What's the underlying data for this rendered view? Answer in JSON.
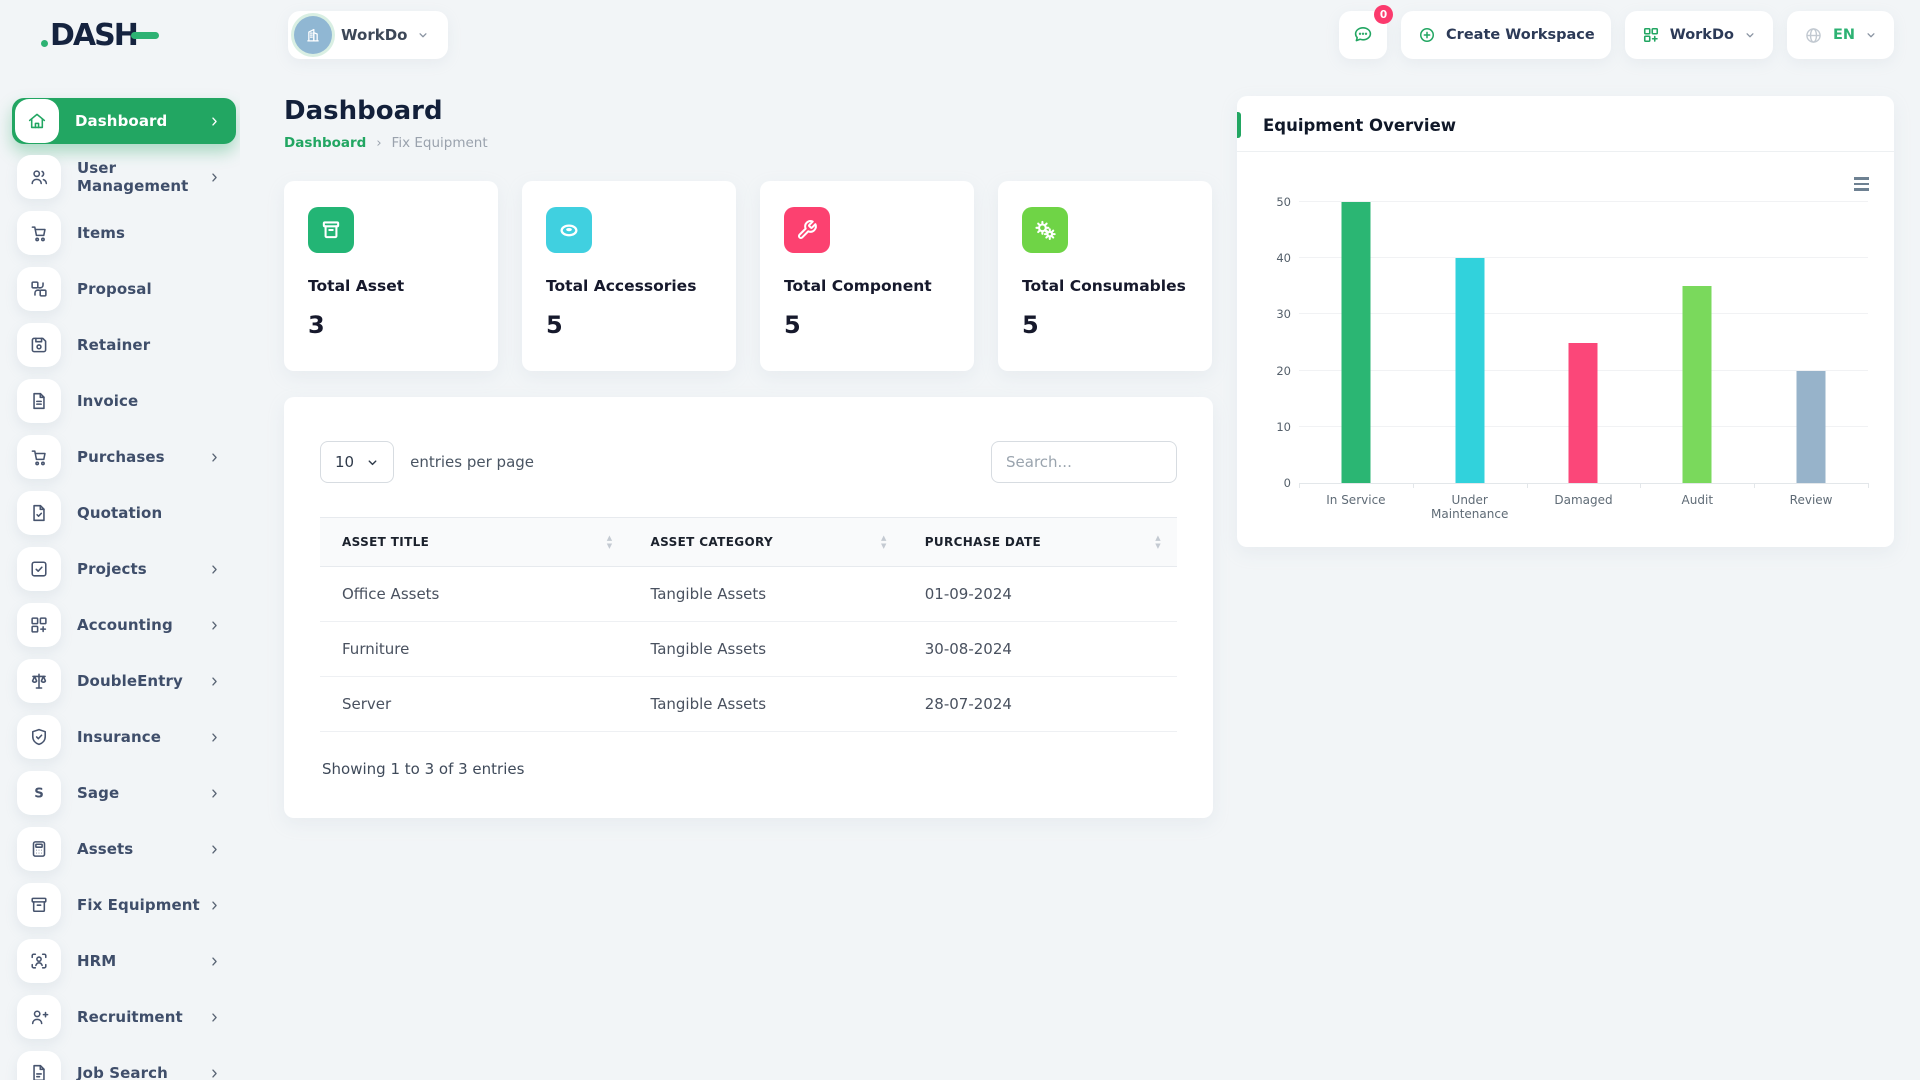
{
  "brand": {
    "name": "DASH"
  },
  "header": {
    "workspace_selector": {
      "label": "WorkDo"
    },
    "messages": {
      "count": "0"
    },
    "create_workspace": {
      "label": "Create Workspace"
    },
    "app_switcher": {
      "label": "WorkDo"
    },
    "language": {
      "label": "EN"
    }
  },
  "sidebar": {
    "items": [
      {
        "label": "Dashboard",
        "icon": "home",
        "active": true,
        "chevron": true
      },
      {
        "label": "User Management",
        "icon": "users",
        "active": false,
        "chevron": true
      },
      {
        "label": "Items",
        "icon": "cart",
        "active": false,
        "chevron": false
      },
      {
        "label": "Proposal",
        "icon": "proposal",
        "active": false,
        "chevron": false
      },
      {
        "label": "Retainer",
        "icon": "floppy",
        "active": false,
        "chevron": false
      },
      {
        "label": "Invoice",
        "icon": "file",
        "active": false,
        "chevron": false
      },
      {
        "label": "Purchases",
        "icon": "cart",
        "active": false,
        "chevron": true
      },
      {
        "label": "Quotation",
        "icon": "file-check",
        "active": false,
        "chevron": false
      },
      {
        "label": "Projects",
        "icon": "square-check",
        "active": false,
        "chevron": true
      },
      {
        "label": "Accounting",
        "icon": "grid-plus",
        "active": false,
        "chevron": true
      },
      {
        "label": "DoubleEntry",
        "icon": "scale",
        "active": false,
        "chevron": true
      },
      {
        "label": "Insurance",
        "icon": "shield-check",
        "active": false,
        "chevron": true
      },
      {
        "label": "Sage",
        "icon": "letter-s",
        "active": false,
        "chevron": true
      },
      {
        "label": "Assets",
        "icon": "calculator",
        "active": false,
        "chevron": true
      },
      {
        "label": "Fix Equipment",
        "icon": "archive",
        "active": false,
        "chevron": true
      },
      {
        "label": "HRM",
        "icon": "user-focus",
        "active": false,
        "chevron": true
      },
      {
        "label": "Recruitment",
        "icon": "user-plus",
        "active": false,
        "chevron": true
      },
      {
        "label": "Job Search",
        "icon": "file-search",
        "active": false,
        "chevron": true
      }
    ]
  },
  "page": {
    "title": "Dashboard",
    "breadcrumb": [
      {
        "label": "Dashboard"
      },
      {
        "label": "Fix Equipment"
      }
    ]
  },
  "stats": [
    {
      "label": "Total Asset",
      "value": "3",
      "icon": "archive-solid",
      "color": "#23b575"
    },
    {
      "label": "Total Accessories",
      "value": "5",
      "icon": "disc",
      "color": "#40d0e0"
    },
    {
      "label": "Total Component",
      "value": "5",
      "icon": "wrench",
      "color": "#fc4170"
    },
    {
      "label": "Total Consumables",
      "value": "5",
      "icon": "gears",
      "color": "#6fd446"
    }
  ],
  "table_card": {
    "page_size": "10",
    "page_size_suffix": "entries per page",
    "search_placeholder": "Search...",
    "columns": [
      "ASSET TITLE",
      "ASSET CATEGORY",
      "PURCHASE DATE"
    ],
    "rows": [
      [
        "Office Assets",
        "Tangible Assets",
        "01-09-2024"
      ],
      [
        "Furniture",
        "Tangible Assets",
        "30-08-2024"
      ],
      [
        "Server",
        "Tangible Assets",
        "28-07-2024"
      ]
    ],
    "summary": "Showing 1 to 3 of 3 entries"
  },
  "chart_card": {
    "title": "Equipment Overview"
  },
  "chart_data": {
    "type": "bar",
    "title": "Equipment Overview",
    "categories": [
      "In Service",
      "Under Maintenance",
      "Damaged",
      "Audit",
      "Review"
    ],
    "values": [
      50,
      40,
      25,
      35,
      20
    ],
    "colors": [
      "#2bb673",
      "#31d2dc",
      "#fb4779",
      "#7ad95c",
      "#97b3ca"
    ],
    "xlabel": "",
    "ylabel": "",
    "ylim": [
      0,
      50
    ],
    "yticks": [
      0,
      10,
      20,
      30,
      40,
      50
    ],
    "grid": true,
    "legend": false
  }
}
